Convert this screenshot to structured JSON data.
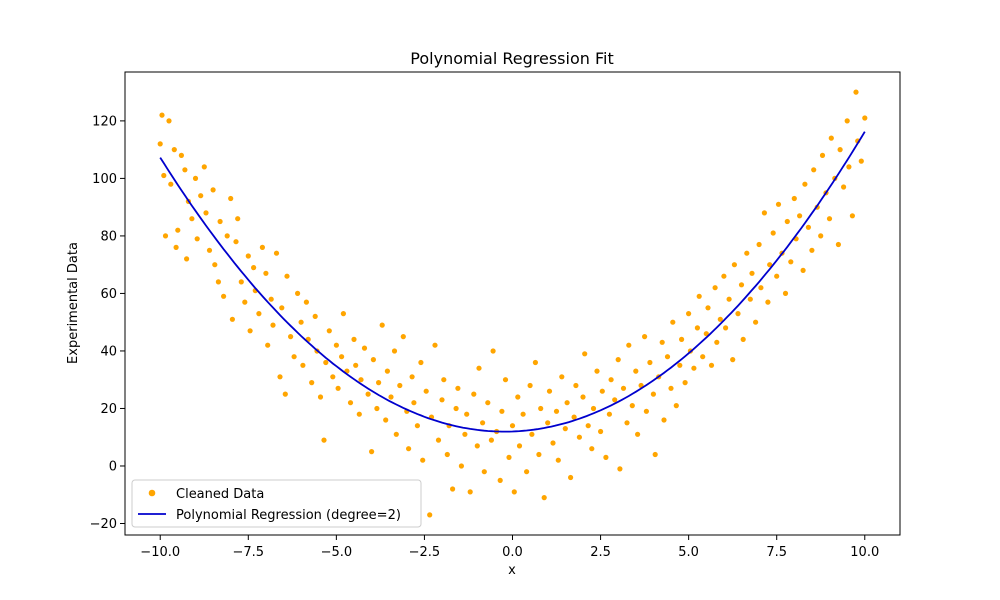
{
  "chart_data": {
    "type": "scatter",
    "title": "Polynomial Regression Fit",
    "xlabel": "x",
    "ylabel": "Experimental Data",
    "xlim": [
      -11,
      11
    ],
    "ylim": [
      -24,
      137
    ],
    "xticks": [
      -10,
      -7.5,
      -5,
      -2.5,
      0,
      2.5,
      5,
      7.5,
      10
    ],
    "xtick_labels": [
      "−10.0",
      "−7.5",
      "−5.0",
      "−2.5",
      "0.0",
      "2.5",
      "5.0",
      "7.5",
      "10.0"
    ],
    "yticks": [
      -20,
      0,
      20,
      40,
      60,
      80,
      100,
      120
    ],
    "ytick_labels": [
      "−20",
      "0",
      "20",
      "40",
      "60",
      "80",
      "100",
      "120"
    ],
    "grid": false,
    "legend_position": "lower-left",
    "series": [
      {
        "name": "Cleaned Data",
        "kind": "scatter",
        "color": "#FFA500",
        "points": [
          [
            -10.0,
            112
          ],
          [
            -9.95,
            122
          ],
          [
            -9.9,
            101
          ],
          [
            -9.85,
            80
          ],
          [
            -9.75,
            120
          ],
          [
            -9.7,
            98
          ],
          [
            -9.6,
            110
          ],
          [
            -9.55,
            76
          ],
          [
            -9.5,
            82
          ],
          [
            -9.4,
            108
          ],
          [
            -9.3,
            103
          ],
          [
            -9.25,
            72
          ],
          [
            -9.2,
            92
          ],
          [
            -9.1,
            86
          ],
          [
            -9.0,
            100
          ],
          [
            -8.95,
            79
          ],
          [
            -8.85,
            94
          ],
          [
            -8.75,
            104
          ],
          [
            -8.7,
            88
          ],
          [
            -8.6,
            75
          ],
          [
            -8.5,
            96
          ],
          [
            -8.45,
            70
          ],
          [
            -8.35,
            64
          ],
          [
            -8.3,
            85
          ],
          [
            -8.2,
            59
          ],
          [
            -8.1,
            80
          ],
          [
            -8.0,
            93
          ],
          [
            -7.95,
            51
          ],
          [
            -7.85,
            78
          ],
          [
            -7.8,
            86
          ],
          [
            -7.7,
            64
          ],
          [
            -7.6,
            57
          ],
          [
            -7.5,
            73
          ],
          [
            -7.45,
            47
          ],
          [
            -7.35,
            69
          ],
          [
            -7.3,
            61
          ],
          [
            -7.2,
            53
          ],
          [
            -7.1,
            76
          ],
          [
            -7.0,
            67
          ],
          [
            -6.95,
            42
          ],
          [
            -6.85,
            58
          ],
          [
            -6.8,
            49
          ],
          [
            -6.7,
            74
          ],
          [
            -6.6,
            31
          ],
          [
            -6.55,
            55
          ],
          [
            -6.45,
            25
          ],
          [
            -6.4,
            66
          ],
          [
            -6.3,
            45
          ],
          [
            -6.2,
            38
          ],
          [
            -6.1,
            60
          ],
          [
            -6.0,
            50
          ],
          [
            -5.95,
            35
          ],
          [
            -5.85,
            57
          ],
          [
            -5.8,
            44
          ],
          [
            -5.7,
            29
          ],
          [
            -5.6,
            52
          ],
          [
            -5.55,
            40
          ],
          [
            -5.45,
            24
          ],
          [
            -5.35,
            9
          ],
          [
            -5.3,
            36
          ],
          [
            -5.2,
            47
          ],
          [
            -5.1,
            31
          ],
          [
            -5.0,
            42
          ],
          [
            -4.95,
            27
          ],
          [
            -4.85,
            38
          ],
          [
            -4.8,
            53
          ],
          [
            -4.7,
            33
          ],
          [
            -4.6,
            22
          ],
          [
            -4.5,
            44
          ],
          [
            -4.45,
            35
          ],
          [
            -4.35,
            18
          ],
          [
            -4.3,
            30
          ],
          [
            -4.2,
            41
          ],
          [
            -4.1,
            25
          ],
          [
            -4.0,
            5
          ],
          [
            -3.95,
            37
          ],
          [
            -3.85,
            20
          ],
          [
            -3.8,
            29
          ],
          [
            -3.7,
            49
          ],
          [
            -3.6,
            16
          ],
          [
            -3.55,
            33
          ],
          [
            -3.45,
            24
          ],
          [
            -3.35,
            40
          ],
          [
            -3.3,
            11
          ],
          [
            -3.2,
            28
          ],
          [
            -3.1,
            45
          ],
          [
            -3.0,
            19
          ],
          [
            -2.95,
            6
          ],
          [
            -2.85,
            31
          ],
          [
            -2.8,
            22
          ],
          [
            -2.7,
            14
          ],
          [
            -2.6,
            36
          ],
          [
            -2.55,
            2
          ],
          [
            -2.45,
            26
          ],
          [
            -2.35,
            -17
          ],
          [
            -2.3,
            17
          ],
          [
            -2.2,
            42
          ],
          [
            -2.1,
            9
          ],
          [
            -2.0,
            23
          ],
          [
            -1.95,
            30
          ],
          [
            -1.85,
            4
          ],
          [
            -1.8,
            14
          ],
          [
            -1.7,
            -8
          ],
          [
            -1.6,
            20
          ],
          [
            -1.55,
            27
          ],
          [
            -1.45,
            0
          ],
          [
            -1.35,
            11
          ],
          [
            -1.3,
            18
          ],
          [
            -1.2,
            -9
          ],
          [
            -1.1,
            25
          ],
          [
            -1.0,
            7
          ],
          [
            -0.95,
            34
          ],
          [
            -0.85,
            15
          ],
          [
            -0.8,
            -2
          ],
          [
            -0.7,
            22
          ],
          [
            -0.6,
            9
          ],
          [
            -0.55,
            40
          ],
          [
            -0.45,
            12
          ],
          [
            -0.35,
            -5
          ],
          [
            -0.3,
            19
          ],
          [
            -0.2,
            30
          ],
          [
            -0.1,
            3
          ],
          [
            0.0,
            14
          ],
          [
            0.05,
            -9
          ],
          [
            0.15,
            24
          ],
          [
            0.2,
            7
          ],
          [
            0.3,
            18
          ],
          [
            0.4,
            -2
          ],
          [
            0.5,
            28
          ],
          [
            0.55,
            11
          ],
          [
            0.65,
            36
          ],
          [
            0.75,
            4
          ],
          [
            0.8,
            20
          ],
          [
            0.9,
            -11
          ],
          [
            1.0,
            15
          ],
          [
            1.05,
            26
          ],
          [
            1.15,
            8
          ],
          [
            1.25,
            19
          ],
          [
            1.3,
            2
          ],
          [
            1.4,
            31
          ],
          [
            1.5,
            13
          ],
          [
            1.55,
            22
          ],
          [
            1.65,
            -4
          ],
          [
            1.75,
            17
          ],
          [
            1.8,
            28
          ],
          [
            1.9,
            10
          ],
          [
            2.0,
            24
          ],
          [
            2.05,
            39
          ],
          [
            2.15,
            14
          ],
          [
            2.25,
            6
          ],
          [
            2.3,
            20
          ],
          [
            2.4,
            33
          ],
          [
            2.5,
            12
          ],
          [
            2.55,
            26
          ],
          [
            2.65,
            3
          ],
          [
            2.75,
            18
          ],
          [
            2.8,
            30
          ],
          [
            2.9,
            23
          ],
          [
            3.0,
            37
          ],
          [
            3.05,
            -1
          ],
          [
            3.15,
            27
          ],
          [
            3.25,
            15
          ],
          [
            3.3,
            42
          ],
          [
            3.4,
            21
          ],
          [
            3.5,
            33
          ],
          [
            3.55,
            11
          ],
          [
            3.65,
            28
          ],
          [
            3.75,
            45
          ],
          [
            3.8,
            19
          ],
          [
            3.9,
            36
          ],
          [
            4.0,
            25
          ],
          [
            4.05,
            4
          ],
          [
            4.15,
            31
          ],
          [
            4.25,
            43
          ],
          [
            4.3,
            16
          ],
          [
            4.4,
            38
          ],
          [
            4.5,
            27
          ],
          [
            4.55,
            50
          ],
          [
            4.65,
            21
          ],
          [
            4.75,
            35
          ],
          [
            4.8,
            44
          ],
          [
            4.9,
            29
          ],
          [
            5.0,
            53
          ],
          [
            5.05,
            40
          ],
          [
            5.15,
            34
          ],
          [
            5.25,
            48
          ],
          [
            5.3,
            59
          ],
          [
            5.4,
            38
          ],
          [
            5.5,
            46
          ],
          [
            5.55,
            55
          ],
          [
            5.65,
            35
          ],
          [
            5.75,
            62
          ],
          [
            5.8,
            43
          ],
          [
            5.9,
            51
          ],
          [
            6.0,
            66
          ],
          [
            6.05,
            48
          ],
          [
            6.15,
            58
          ],
          [
            6.25,
            37
          ],
          [
            6.3,
            70
          ],
          [
            6.4,
            53
          ],
          [
            6.5,
            63
          ],
          [
            6.55,
            44
          ],
          [
            6.65,
            74
          ],
          [
            6.75,
            58
          ],
          [
            6.8,
            67
          ],
          [
            6.9,
            50
          ],
          [
            7.0,
            77
          ],
          [
            7.05,
            62
          ],
          [
            7.15,
            88
          ],
          [
            7.25,
            57
          ],
          [
            7.3,
            70
          ],
          [
            7.4,
            81
          ],
          [
            7.5,
            66
          ],
          [
            7.55,
            91
          ],
          [
            7.65,
            74
          ],
          [
            7.75,
            60
          ],
          [
            7.8,
            85
          ],
          [
            7.9,
            71
          ],
          [
            8.0,
            93
          ],
          [
            8.05,
            79
          ],
          [
            8.15,
            87
          ],
          [
            8.25,
            68
          ],
          [
            8.3,
            98
          ],
          [
            8.4,
            83
          ],
          [
            8.5,
            75
          ],
          [
            8.55,
            103
          ],
          [
            8.65,
            90
          ],
          [
            8.75,
            80
          ],
          [
            8.8,
            108
          ],
          [
            8.9,
            95
          ],
          [
            9.0,
            86
          ],
          [
            9.05,
            114
          ],
          [
            9.15,
            100
          ],
          [
            9.25,
            77
          ],
          [
            9.3,
            110
          ],
          [
            9.4,
            97
          ],
          [
            9.5,
            120
          ],
          [
            9.55,
            104
          ],
          [
            9.65,
            87
          ],
          [
            9.75,
            130
          ],
          [
            9.8,
            113
          ],
          [
            9.9,
            106
          ],
          [
            10.0,
            121
          ]
        ]
      },
      {
        "name": "Polynomial Regression (degree=2)",
        "kind": "line",
        "color": "#0000CD",
        "coefficients": {
          "a": 0.9975,
          "b": 0.45,
          "c": 12
        }
      }
    ]
  }
}
